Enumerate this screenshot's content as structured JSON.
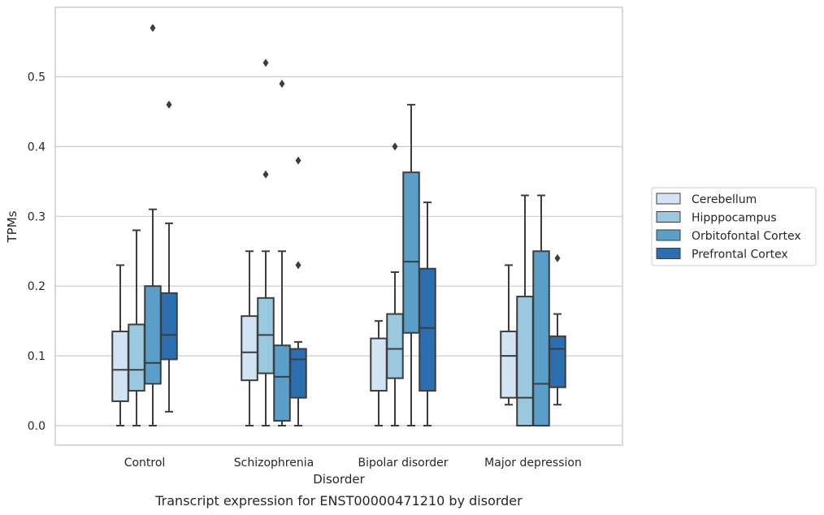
{
  "chart_data": {
    "type": "box",
    "caption": "Transcript expression for ENST00000471210 by disorder",
    "xlabel": "Disorder",
    "ylabel": "TPMs",
    "ylim": [
      -0.028,
      0.602
    ],
    "yticks": [
      "0.0",
      "0.1",
      "0.2",
      "0.3",
      "0.4",
      "0.5"
    ],
    "grid": "horizontal",
    "legend_position": "right",
    "categories": [
      "Control",
      "Schizophrenia",
      "Bipolar disorder",
      "Major depression"
    ],
    "series": [
      {
        "name": "Cerebellum",
        "color": "#d2e3f3",
        "boxes": [
          {
            "q1": 0.035,
            "median": 0.08,
            "q3": 0.135,
            "whisker_low": 0.0,
            "whisker_high": 0.23,
            "outliers": []
          },
          {
            "q1": 0.065,
            "median": 0.105,
            "q3": 0.157,
            "whisker_low": 0.0,
            "whisker_high": 0.25,
            "outliers": []
          },
          {
            "q1": 0.05,
            "median": 0.05,
            "q3": 0.125,
            "whisker_low": 0.0,
            "whisker_high": 0.15,
            "outliers": []
          },
          {
            "q1": 0.04,
            "median": 0.1,
            "q3": 0.135,
            "whisker_low": 0.03,
            "whisker_high": 0.23,
            "outliers": []
          }
        ]
      },
      {
        "name": "Hipppocampus",
        "color": "#9ac8e0",
        "boxes": [
          {
            "q1": 0.05,
            "median": 0.08,
            "q3": 0.145,
            "whisker_low": 0.0,
            "whisker_high": 0.28,
            "outliers": []
          },
          {
            "q1": 0.075,
            "median": 0.13,
            "q3": 0.183,
            "whisker_low": 0.0,
            "whisker_high": 0.25,
            "outliers": [
              0.36,
              0.52
            ]
          },
          {
            "q1": 0.068,
            "median": 0.11,
            "q3": 0.16,
            "whisker_low": 0.0,
            "whisker_high": 0.22,
            "outliers": [
              0.4
            ]
          },
          {
            "q1": 0.0,
            "median": 0.04,
            "q3": 0.185,
            "whisker_low": 0.0,
            "whisker_high": 0.33,
            "outliers": []
          }
        ]
      },
      {
        "name": "Orbitofontal Cortex",
        "color": "#5a9fca",
        "boxes": [
          {
            "q1": 0.06,
            "median": 0.09,
            "q3": 0.2,
            "whisker_low": 0.0,
            "whisker_high": 0.31,
            "outliers": [
              0.57
            ]
          },
          {
            "q1": 0.007,
            "median": 0.07,
            "q3": 0.115,
            "whisker_low": 0.0,
            "whisker_high": 0.25,
            "outliers": [
              0.49
            ]
          },
          {
            "q1": 0.133,
            "median": 0.235,
            "q3": 0.363,
            "whisker_low": 0.0,
            "whisker_high": 0.46,
            "outliers": []
          },
          {
            "q1": 0.0,
            "median": 0.06,
            "q3": 0.25,
            "whisker_low": 0.0,
            "whisker_high": 0.33,
            "outliers": []
          }
        ]
      },
      {
        "name": "Prefrontal Cortex",
        "color": "#2b6fb0",
        "boxes": [
          {
            "q1": 0.095,
            "median": 0.13,
            "q3": 0.19,
            "whisker_low": 0.02,
            "whisker_high": 0.29,
            "outliers": [
              0.46
            ]
          },
          {
            "q1": 0.04,
            "median": 0.095,
            "q3": 0.11,
            "whisker_low": 0.0,
            "whisker_high": 0.12,
            "outliers": [
              0.23,
              0.38
            ]
          },
          {
            "q1": 0.05,
            "median": 0.14,
            "q3": 0.225,
            "whisker_low": 0.0,
            "whisker_high": 0.32,
            "outliers": []
          },
          {
            "q1": 0.055,
            "median": 0.11,
            "q3": 0.128,
            "whisker_low": 0.03,
            "whisker_high": 0.16,
            "outliers": [
              0.24
            ]
          }
        ]
      }
    ]
  }
}
